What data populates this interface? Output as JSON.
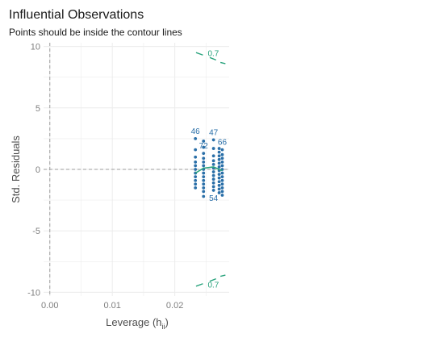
{
  "chart_data": {
    "type": "scatter",
    "title": "Influential Observations",
    "subtitle": "Points should be inside the contour lines",
    "xlabel": "Leverage (h",
    "xlabel_sub": "ii",
    "xlabel_close": ")",
    "ylabel": "Std. Residuals",
    "xlim": [
      -0.001,
      0.0287
    ],
    "ylim": [
      -10.3,
      10.3
    ],
    "x_ticks": [
      0.0,
      0.01,
      0.02
    ],
    "x_tick_labels": [
      "0.00",
      "0.01",
      "0.02"
    ],
    "y_ticks": [
      10,
      5,
      0,
      -5,
      -10
    ],
    "y_tick_labels": [
      "10",
      "5",
      "0",
      "-5",
      "-10"
    ],
    "grid": true,
    "reference_lines": {
      "x": 0,
      "y": 0
    },
    "colors": {
      "points": "#2a6fa8",
      "smooth": "#2aa37d",
      "contour": "#2aa37d",
      "reference": "#9e9e9e",
      "grid": "#ececec"
    },
    "point_series": [
      {
        "x": 0.0233,
        "y": [
          2.5,
          1.6,
          1.0,
          0.6,
          0.3,
          0.0,
          -0.3,
          -0.6,
          -0.9,
          -1.2,
          -1.5
        ]
      },
      {
        "x": 0.0246,
        "y": [
          2.3,
          1.8,
          1.3,
          0.9,
          0.6,
          0.3,
          0.0,
          -0.3,
          -0.6,
          -0.9,
          -1.2,
          -1.5,
          -1.8,
          -2.2
        ]
      },
      {
        "x": 0.0262,
        "y": [
          2.4,
          1.7,
          1.1,
          0.7,
          0.4,
          0.1,
          -0.2,
          -0.5,
          -0.8,
          -1.1,
          -1.4,
          -1.7
        ]
      },
      {
        "x": 0.0271,
        "y": [
          1.7,
          1.4,
          1.1,
          0.8,
          0.5,
          0.2,
          -0.1,
          -0.4,
          -0.7,
          -1.0,
          -1.3,
          -1.6,
          -1.9
        ]
      },
      {
        "x": 0.0276,
        "y": [
          1.6,
          1.2,
          0.9,
          0.6,
          0.3,
          0.0,
          -0.3,
          -0.6,
          -0.9,
          -1.2,
          -1.5,
          -1.8,
          -2.1
        ]
      }
    ],
    "smooth_line": {
      "x": [
        0.0233,
        0.0246,
        0.0262,
        0.0271,
        0.0276
      ],
      "y": [
        -0.3,
        0.1,
        0.2,
        0.0,
        -0.1
      ]
    },
    "contours": [
      {
        "label": "0.7",
        "x": [
          0.0234,
          0.0245
        ],
        "y": [
          9.5,
          9.3
        ]
      },
      {
        "label": "",
        "x": [
          0.0256,
          0.0266
        ],
        "y": [
          9.1,
          8.9
        ]
      },
      {
        "label": "",
        "x": [
          0.0273,
          0.0281
        ],
        "y": [
          8.7,
          8.6
        ]
      },
      {
        "label": "0.7",
        "x": [
          0.0234,
          0.0245
        ],
        "y": [
          -9.5,
          -9.3
        ]
      },
      {
        "label": "",
        "x": [
          0.0256,
          0.0266
        ],
        "y": [
          -9.1,
          -8.9
        ]
      },
      {
        "label": "",
        "x": [
          0.0273,
          0.0281
        ],
        "y": [
          -8.7,
          -8.6
        ]
      }
    ],
    "point_labels": [
      {
        "label": "46",
        "x": 0.0233,
        "y": 2.5
      },
      {
        "label": "47",
        "x": 0.0262,
        "y": 2.4
      },
      {
        "label": "72",
        "x": 0.0246,
        "y": 1.3
      },
      {
        "label": "66",
        "x": 0.0276,
        "y": 1.6
      },
      {
        "label": "54",
        "x": 0.0262,
        "y": -1.7
      }
    ]
  }
}
